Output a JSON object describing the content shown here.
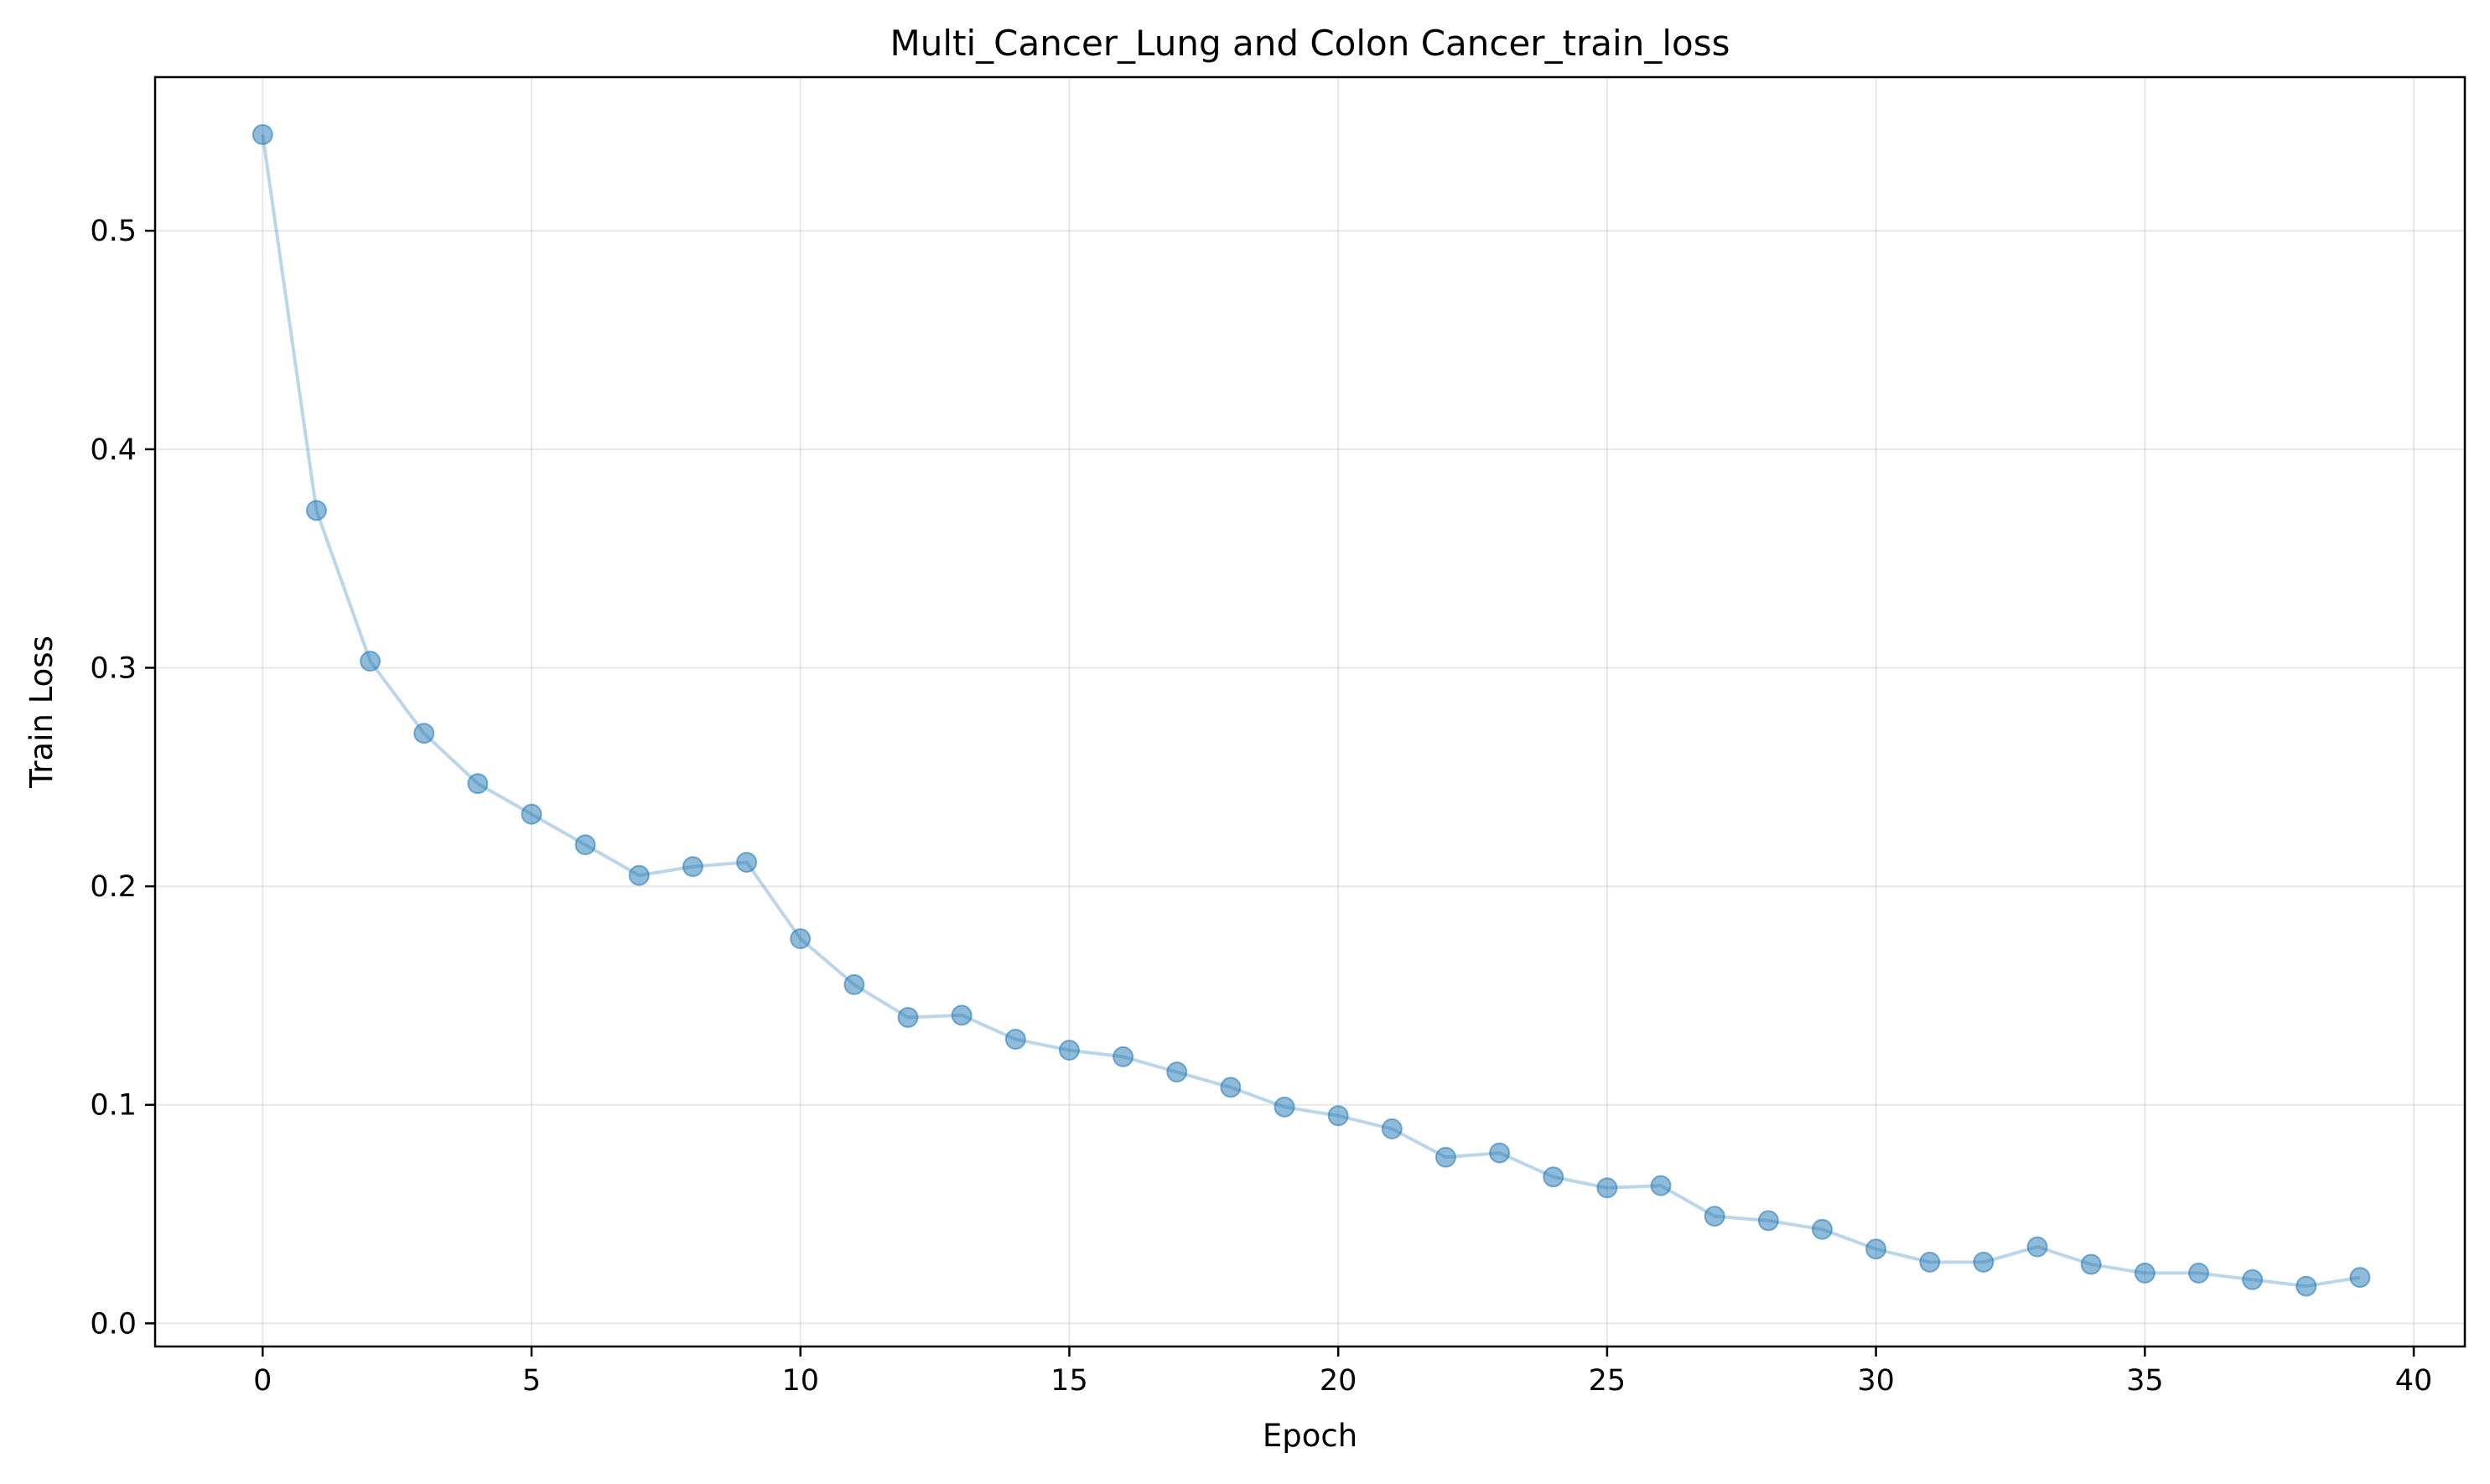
{
  "chart_data": {
    "type": "line",
    "title": "Multi_Cancer_Lung and Colon Cancer_train_loss",
    "xlabel": "Epoch",
    "ylabel": "Train Loss",
    "xlim": [
      -2.0,
      40.95
    ],
    "ylim": [
      -0.0106,
      0.5703
    ],
    "grid": true,
    "xticks": [
      0,
      5,
      10,
      15,
      20,
      25,
      30,
      35,
      40
    ],
    "xtick_labels": [
      "0",
      "5",
      "10",
      "15",
      "20",
      "25",
      "30",
      "35",
      "40"
    ],
    "yticks": [
      0.0,
      0.1,
      0.2,
      0.3,
      0.4,
      0.5
    ],
    "ytick_labels": [
      "0.0",
      "0.1",
      "0.2",
      "0.3",
      "0.4",
      "0.5"
    ],
    "series": [
      {
        "x": [
          0,
          1,
          2,
          3,
          4,
          5,
          6,
          7,
          8,
          9,
          10,
          11,
          12,
          13,
          14,
          15,
          16,
          17,
          18,
          19,
          20,
          21,
          22,
          23,
          24,
          25,
          26,
          27,
          28,
          29,
          30,
          31,
          32,
          33,
          34,
          35,
          36,
          37,
          38,
          39
        ],
        "values": [
          0.544,
          0.372,
          0.303,
          0.27,
          0.247,
          0.233,
          0.219,
          0.205,
          0.209,
          0.211,
          0.176,
          0.155,
          0.14,
          0.141,
          0.13,
          0.125,
          0.122,
          0.115,
          0.108,
          0.099,
          0.095,
          0.089,
          0.076,
          0.078,
          0.067,
          0.062,
          0.063,
          0.049,
          0.047,
          0.043,
          0.034,
          0.028,
          0.028,
          0.035,
          0.027,
          0.023,
          0.023,
          0.02,
          0.017,
          0.021
        ],
        "color": "#1f77b4"
      }
    ]
  }
}
